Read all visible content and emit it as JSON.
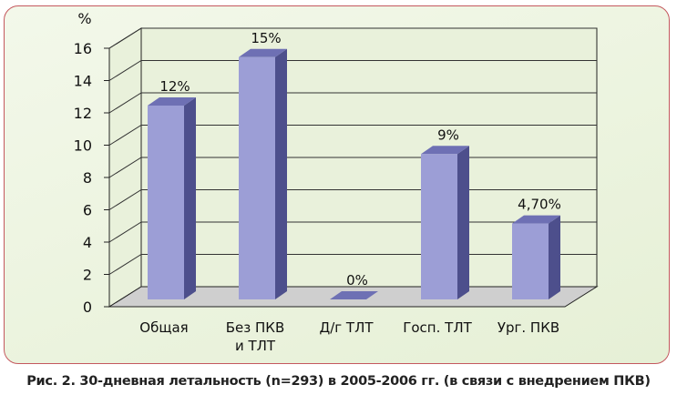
{
  "caption": "Рис. 2. 30-дневная летальность (n=293) в 2005-2006 гг. (в связи с внедрением ПКВ)",
  "chart_data": {
    "type": "bar",
    "ylabel": "%",
    "ylim": [
      0,
      16
    ],
    "yticks": [
      0,
      2,
      4,
      6,
      8,
      10,
      12,
      14,
      16
    ],
    "categories": [
      [
        "Общая"
      ],
      [
        "Без ПКВ",
        "и ТЛТ"
      ],
      [
        "Д/г ТЛТ"
      ],
      [
        "Госп. ТЛТ"
      ],
      [
        "Ург. ПКВ"
      ]
    ],
    "values": [
      12,
      15,
      0,
      9,
      4.7
    ],
    "data_labels": [
      "12%",
      "15%",
      "0%",
      "9%",
      "4,70%"
    ],
    "grid": true
  },
  "colors": {
    "bar_front": "#9c9ed6",
    "bar_side": "#4d4f8c",
    "bar_top": "#6e70b4",
    "floor": "#cfcfcf",
    "walls": "#e9f1db"
  }
}
